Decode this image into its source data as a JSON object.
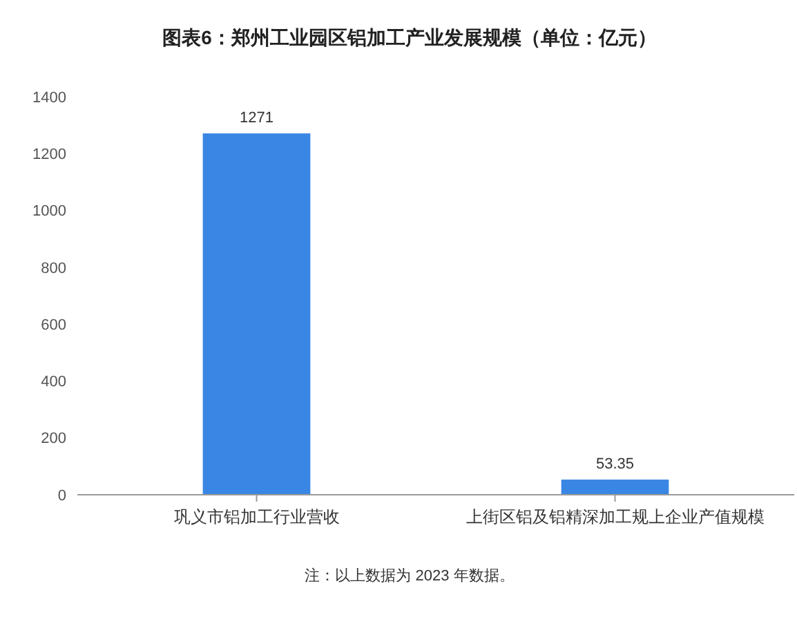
{
  "chart_data": {
    "type": "bar",
    "title": "图表6：郑州工业园区铝加工产业发展规模（单位：亿元）",
    "categories": [
      "巩义市铝加工行业营收",
      "上街区铝及铝精深加工规上企业产值规模"
    ],
    "values": [
      1271,
      53.35
    ],
    "color": "#3a86e4",
    "ylim": [
      0,
      1400
    ],
    "yticks": [
      0,
      200,
      400,
      600,
      800,
      1000,
      1200,
      1400
    ],
    "grid": false,
    "data_labels": true,
    "annotations": [
      "注：以上数据为 2023 年数据。"
    ]
  }
}
